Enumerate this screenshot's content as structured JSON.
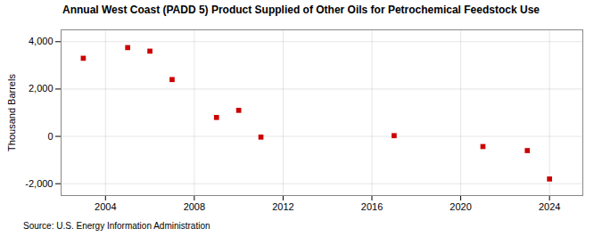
{
  "chart_data": {
    "type": "scatter",
    "title": "Annual West Coast (PADD 5) Product Supplied of Other Oils for Petrochemical Feedstock Use",
    "ylabel": "Thousand Barrels",
    "source": "Source: U.S. Energy Information Administration",
    "x": [
      2003,
      2005,
      2006,
      2007,
      2009,
      2010,
      2011,
      2017,
      2021,
      2023,
      2024
    ],
    "values": [
      3300,
      3750,
      3600,
      2400,
      800,
      1100,
      -30,
      30,
      -430,
      -600,
      -1800
    ],
    "color": "#cc0000",
    "marker": "square",
    "xlim": [
      2002,
      2025.5
    ],
    "xticks": [
      2004,
      2008,
      2012,
      2016,
      2020,
      2024
    ],
    "ylim": [
      -2500,
      4500
    ],
    "yticks": [
      {
        "value": -2000,
        "label": "-2,000"
      },
      0,
      {
        "value": 2000,
        "label": "2,000"
      },
      {
        "value": 4000,
        "label": "4,000"
      }
    ],
    "grid": true
  }
}
